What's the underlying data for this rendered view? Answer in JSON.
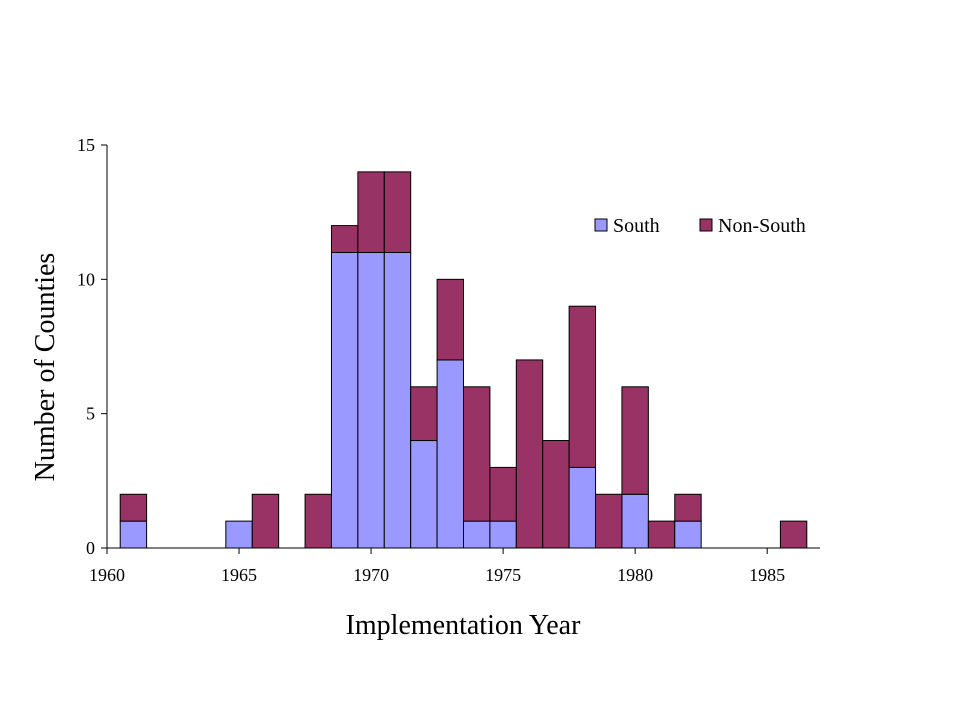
{
  "chart_data": {
    "type": "bar",
    "stacked": true,
    "title": "",
    "xlabel": "Implementation Year",
    "ylabel": "Number of Counties",
    "xlim": [
      1960,
      1987
    ],
    "ylim": [
      0,
      15
    ],
    "x_ticks": [
      1960,
      1965,
      1970,
      1975,
      1980,
      1985
    ],
    "y_ticks": [
      0,
      5,
      10,
      15
    ],
    "grid": false,
    "legend_position": "top-right",
    "categories": [
      1961,
      1962,
      1963,
      1964,
      1965,
      1966,
      1967,
      1968,
      1969,
      1970,
      1971,
      1972,
      1973,
      1974,
      1975,
      1976,
      1977,
      1978,
      1979,
      1980,
      1981,
      1982,
      1983,
      1984,
      1985,
      1986
    ],
    "series": [
      {
        "name": "South",
        "color": "#9999ff",
        "values": [
          1,
          0,
          0,
          0,
          1,
          0,
          0,
          0,
          11,
          11,
          11,
          4,
          7,
          1,
          1,
          0,
          0,
          3,
          0,
          2,
          0,
          1,
          0,
          0,
          0,
          0
        ]
      },
      {
        "name": "Non-South",
        "color": "#993366",
        "values": [
          1,
          0,
          0,
          0,
          0,
          2,
          0,
          2,
          1,
          3,
          3,
          2,
          3,
          5,
          2,
          7,
          4,
          6,
          2,
          4,
          1,
          1,
          0,
          0,
          0,
          1
        ]
      }
    ]
  }
}
